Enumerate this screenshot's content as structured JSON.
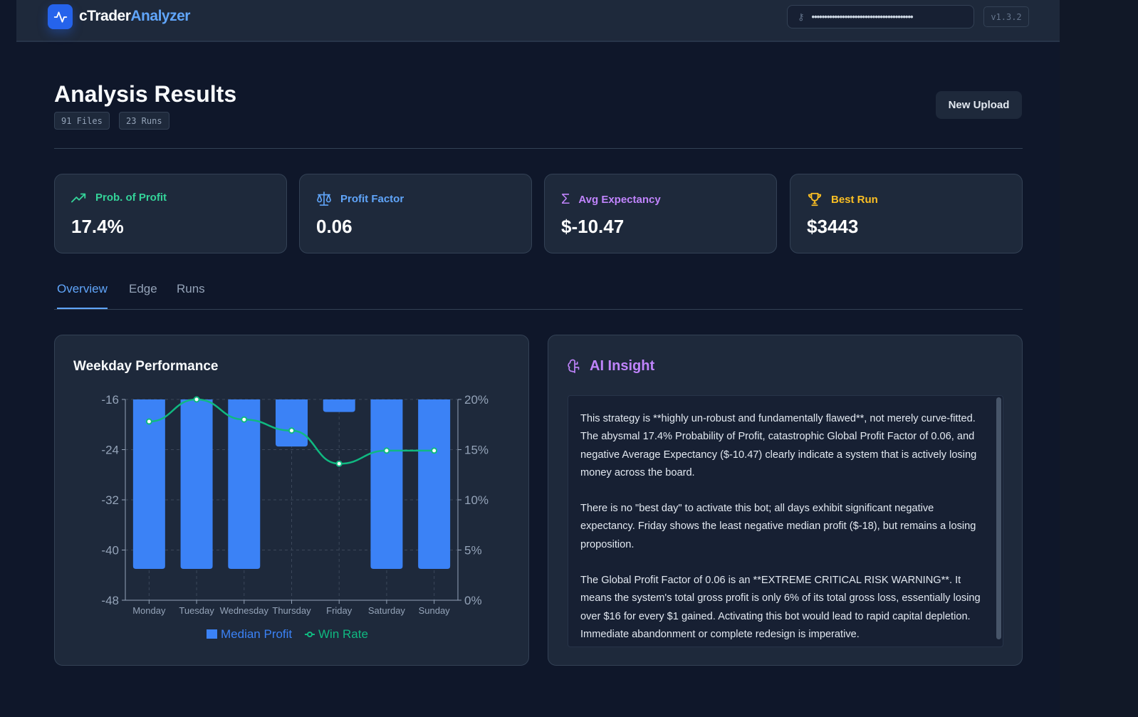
{
  "header": {
    "brand_left": "cTrader",
    "brand_right": "Analyzer",
    "api_key_masked": "••••••••••••••••••••••••••••••••••••••••",
    "version": "v1.3.2"
  },
  "page": {
    "title": "Analysis Results",
    "badges": [
      "91 Files",
      "23 Runs"
    ],
    "new_upload": "New Upload"
  },
  "stats": [
    {
      "label": "Prob. of Profit",
      "value": "17.4%",
      "color": "#34d399",
      "icon": "trending-up-icon"
    },
    {
      "label": "Profit Factor",
      "value": "0.06",
      "color": "#60a5fa",
      "icon": "scale-icon"
    },
    {
      "label": "Avg Expectancy",
      "value": "$-10.47",
      "color": "#c084fc",
      "icon": "sigma-icon"
    },
    {
      "label": "Best Run",
      "value": "$3443",
      "color": "#fbbf24",
      "icon": "trophy-icon"
    }
  ],
  "tabs": [
    "Overview",
    "Edge",
    "Runs"
  ],
  "active_tab": "Overview",
  "weekday": {
    "title": "Weekday Performance"
  },
  "chart_data": {
    "type": "bar+line",
    "categories": [
      "Monday",
      "Tuesday",
      "Wednesday",
      "Thursday",
      "Friday",
      "Saturday",
      "Sunday"
    ],
    "series": [
      {
        "name": "Median Profit",
        "type": "bar",
        "axis": "left",
        "color": "#3b82f6",
        "values": [
          -43,
          -43,
          -43,
          -23.5,
          -18,
          -43,
          -43
        ]
      },
      {
        "name": "Win Rate",
        "type": "line",
        "axis": "right",
        "color": "#10b981",
        "values": [
          17.8,
          20,
          18,
          16.9,
          13.6,
          14.9,
          14.9
        ]
      }
    ],
    "left_ticks": [
      "-16",
      "-24",
      "-32",
      "-40",
      "-48"
    ],
    "ylim_left": [
      -48,
      -16
    ],
    "right_ticks": [
      "20%",
      "15%",
      "10%",
      "5%",
      "0%"
    ],
    "ylim_right": [
      0,
      20
    ],
    "grid": true,
    "legend": "bottom"
  },
  "ai": {
    "title": "AI Insight",
    "paragraphs": [
      "This strategy is **highly un-robust and fundamentally flawed**, not merely curve-fitted. The abysmal 17.4% Probability of Profit, catastrophic Global Profit Factor of 0.06, and negative Average Expectancy ($-10.47) clearly indicate a system that is actively losing money across the board.",
      "There is no \"best day\" to activate this bot; all days exhibit significant negative expectancy. Friday shows the least negative median profit ($-18), but remains a losing proposition.",
      "The Global Profit Factor of 0.06 is an **EXTREME CRITICAL RISK WARNING**. It means the system's total gross profit is only 6% of its total gross loss, essentially losing over $16 for every $1 gained. Activating this bot would lead to rapid capital depletion. Immediate abandonment or complete redesign is imperative."
    ]
  }
}
